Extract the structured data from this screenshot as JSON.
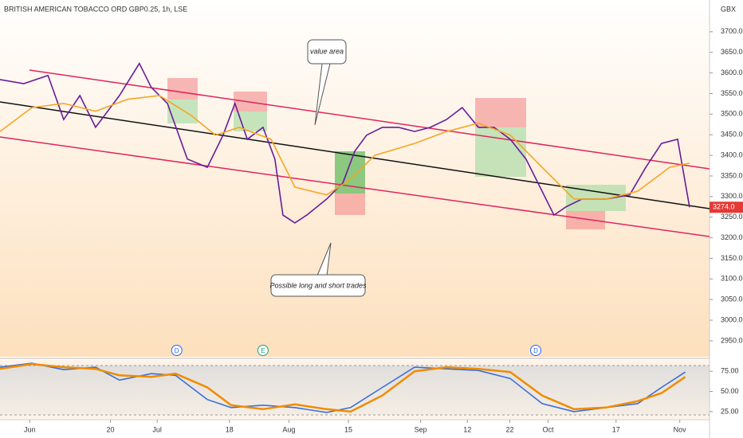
{
  "chart_data": [
    {
      "type": "line",
      "title": "BRITISH AMERICAN TOBACCO ORD GBP0.25, 1h, LSE",
      "y_label": "GBX",
      "xlim": [
        -7,
        160
      ],
      "ylim": [
        2917,
        3777
      ],
      "yticks": [
        {
          "value": 2950,
          "label": "2950.0"
        },
        {
          "value": 3000,
          "label": "3000.0"
        },
        {
          "value": 3050,
          "label": "3050.0"
        },
        {
          "value": 3100,
          "label": "3100.0"
        },
        {
          "value": 3150,
          "label": "3150.0"
        },
        {
          "value": 3200,
          "label": "3200.0"
        },
        {
          "value": 3250,
          "label": "3250.0"
        },
        {
          "value": 3300,
          "label": "3300.0"
        },
        {
          "value": 3350,
          "label": "3350.0"
        },
        {
          "value": 3400,
          "label": "3400.0"
        },
        {
          "value": 3450,
          "label": "3450.0"
        },
        {
          "value": 3500,
          "label": "3500.0"
        },
        {
          "value": 3550,
          "label": "3550.0"
        },
        {
          "value": 3600,
          "label": "3600.0"
        },
        {
          "value": 3650,
          "label": "3650.0"
        },
        {
          "value": 3700,
          "label": "3700.0"
        }
      ],
      "xticks": [
        {
          "value": 0,
          "label": "Jun"
        },
        {
          "value": 19,
          "label": "20"
        },
        {
          "value": 30,
          "label": "Jul"
        },
        {
          "value": 47,
          "label": "18"
        },
        {
          "value": 61,
          "label": "Aug"
        },
        {
          "value": 75,
          "label": "15"
        },
        {
          "value": 92,
          "label": "Sep"
        },
        {
          "value": 103,
          "label": "12"
        },
        {
          "value": 113,
          "label": "22"
        },
        {
          "value": 122,
          "label": "Oct"
        },
        {
          "value": 138,
          "label": "17"
        },
        {
          "value": 153,
          "label": "Nov"
        }
      ],
      "series": [
        {
          "color": "#6a1b9a",
          "x": [
            -7,
            -1.4,
            4.3,
            8,
            11.8,
            15.5,
            21.1,
            25.8,
            28.6,
            32.4,
            37.1,
            41.8,
            45.5,
            48.3,
            51.2,
            54.9,
            57.7,
            59.6,
            62.4,
            65.2,
            69.9,
            73.7,
            76.5,
            79.3,
            83,
            86.8,
            90.6,
            94.3,
            98.1,
            101.8,
            105.6,
            109.3,
            113.1,
            116.8,
            120.6,
            123.4,
            126.2,
            130,
            135.6,
            141.2,
            145,
            148.7,
            152.5,
            154.3,
            155.3
          ],
          "values": [
            3584,
            3574,
            3594,
            3487,
            3545,
            3468,
            3545,
            3623,
            3565,
            3526,
            3391,
            3371,
            3449,
            3526,
            3439,
            3468,
            3391,
            3255,
            3236,
            3255,
            3294,
            3333,
            3410,
            3449,
            3468,
            3468,
            3458,
            3468,
            3487,
            3516,
            3468,
            3468,
            3439,
            3391,
            3313,
            3255,
            3275,
            3294,
            3294,
            3304,
            3371,
            3429,
            3439,
            3333,
            3274
          ]
        },
        {
          "color": "#f5a623",
          "x": [
            -7,
            0.5,
            8,
            15.5,
            23,
            30.5,
            38,
            43.7,
            49.3,
            56.8,
            62.4,
            69.9,
            75.5,
            81.2,
            90.6,
            98.1,
            105.6,
            113.1,
            120.6,
            128.1,
            135.6,
            143.1,
            150.6,
            155.3
          ],
          "values": [
            3458,
            3516,
            3526,
            3507,
            3536,
            3545,
            3497,
            3449,
            3468,
            3439,
            3323,
            3304,
            3342,
            3400,
            3429,
            3458,
            3478,
            3449,
            3371,
            3294,
            3294,
            3313,
            3371,
            3381
          ]
        }
      ],
      "price_label": {
        "value": 3274,
        "label": "3274.0"
      },
      "events": [
        {
          "x": 34.6,
          "label": "D"
        },
        {
          "x": 54.9,
          "label": "E"
        },
        {
          "x": 119.1,
          "label": "D"
        }
      ],
      "annotations": [
        "value area",
        "Possible long and short trades"
      ]
    },
    {
      "type": "line",
      "xlim": [
        -7,
        160
      ],
      "ylim": [
        17,
        89
      ],
      "yticks": [
        {
          "value": 25,
          "label": "25.00"
        },
        {
          "value": 50,
          "label": "50.00"
        },
        {
          "value": 75,
          "label": "75.00"
        }
      ],
      "series": [
        {
          "color": "#3b6fd8",
          "x": [
            -7,
            0.5,
            8,
            15.5,
            21.1,
            28.6,
            34.3,
            41.8,
            47.4,
            54.9,
            62.4,
            69.9,
            75.5,
            83,
            90.6,
            98.1,
            105.6,
            113.1,
            120.6,
            128.1,
            135.6,
            143.1,
            148.7,
            154.3
          ],
          "values": [
            80,
            85,
            77,
            80,
            64,
            72,
            70,
            40,
            30,
            33,
            30,
            24,
            30,
            55,
            80,
            78,
            76,
            66,
            35,
            25,
            30,
            35,
            55,
            74
          ]
        },
        {
          "color": "#f08c00",
          "x": [
            -7,
            0.5,
            8,
            15.5,
            21.1,
            28.6,
            34.3,
            41.8,
            47.4,
            54.9,
            62.4,
            69.9,
            75.5,
            83,
            90.6,
            98.1,
            105.6,
            113.1,
            120.6,
            128.1,
            135.6,
            143.1,
            148.7,
            154.3
          ],
          "values": [
            78,
            84,
            80,
            78,
            70,
            68,
            72,
            55,
            33,
            28,
            34,
            28,
            25,
            45,
            75,
            80,
            78,
            74,
            45,
            28,
            30,
            38,
            48,
            68
          ]
        }
      ]
    }
  ]
}
